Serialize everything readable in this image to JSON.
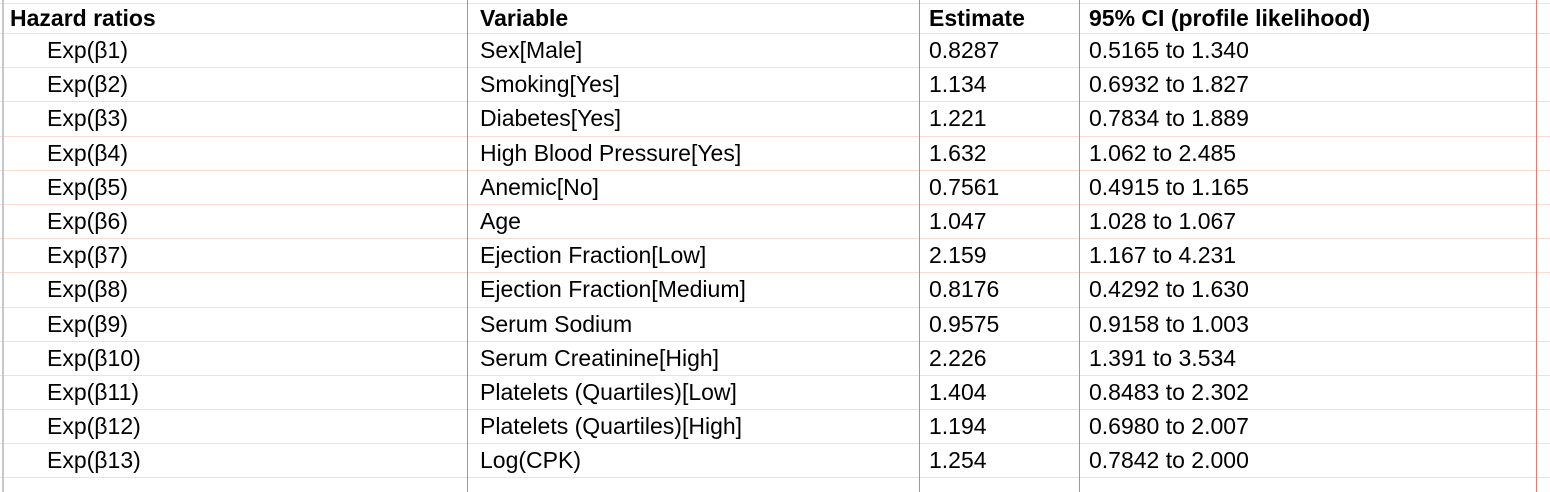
{
  "table": {
    "columns": [
      "Hazard ratios",
      "Variable",
      "Estimate",
      "95% CI (profile likelihood)"
    ],
    "rows": [
      {
        "hazard_ratio": "Exp(β1)",
        "variable": "Sex[Male]",
        "estimate": "0.8287",
        "ci": "0.5165 to 1.340"
      },
      {
        "hazard_ratio": "Exp(β2)",
        "variable": "Smoking[Yes]",
        "estimate": "1.134",
        "ci": "0.6932 to 1.827"
      },
      {
        "hazard_ratio": "Exp(β3)",
        "variable": "Diabetes[Yes]",
        "estimate": "1.221",
        "ci": "0.7834 to 1.889"
      },
      {
        "hazard_ratio": "Exp(β4)",
        "variable": "High Blood Pressure[Yes]",
        "estimate": "1.632",
        "ci": "1.062 to 2.485"
      },
      {
        "hazard_ratio": "Exp(β5)",
        "variable": "Anemic[No]",
        "estimate": "0.7561",
        "ci": "0.4915 to 1.165"
      },
      {
        "hazard_ratio": "Exp(β6)",
        "variable": "Age",
        "estimate": "1.047",
        "ci": "1.028 to 1.067"
      },
      {
        "hazard_ratio": "Exp(β7)",
        "variable": "Ejection Fraction[Low]",
        "estimate": "2.159",
        "ci": "1.167 to 4.231"
      },
      {
        "hazard_ratio": "Exp(β8)",
        "variable": "Ejection Fraction[Medium]",
        "estimate": "0.8176",
        "ci": "0.4292 to 1.630"
      },
      {
        "hazard_ratio": "Exp(β9)",
        "variable": "Serum Sodium",
        "estimate": "0.9575",
        "ci": "0.9158 to 1.003"
      },
      {
        "hazard_ratio": "Exp(β10)",
        "variable": "Serum Creatinine[High]",
        "estimate": "2.226",
        "ci": "1.391 to 3.534"
      },
      {
        "hazard_ratio": "Exp(β11)",
        "variable": "Platelets (Quartiles)[Low]",
        "estimate": "1.404",
        "ci": "0.8483 to 2.302"
      },
      {
        "hazard_ratio": "Exp(β12)",
        "variable": "Platelets (Quartiles)[High]",
        "estimate": "1.194",
        "ci": "0.6980 to 2.007"
      },
      {
        "hazard_ratio": "Exp(β13)",
        "variable": "Log(CPK)",
        "estimate": "1.254",
        "ci": "0.7842 to 2.000"
      }
    ]
  },
  "colors": {
    "grid_horizontal": "#fadcd3",
    "grid_vertical": "#dd8078",
    "left_border": "#c6c7cb",
    "text": "#000000",
    "background": "#ffffff"
  }
}
